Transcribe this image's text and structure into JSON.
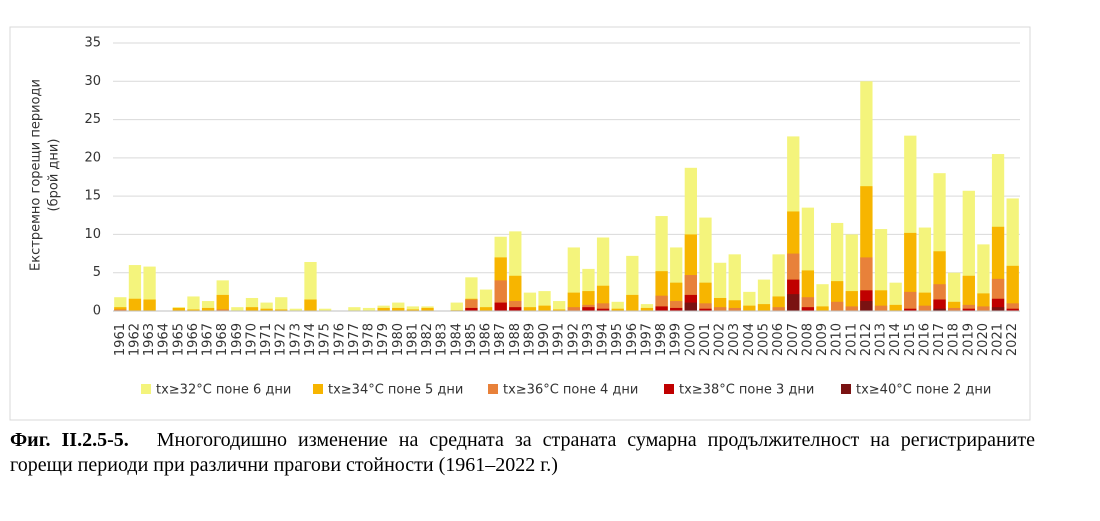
{
  "chart_data": {
    "type": "bar",
    "ylabel": [
      "Екстремно горещи периоди",
      "(брой дни)"
    ],
    "categories": [
      "1961",
      "1962",
      "1963",
      "1964",
      "1965",
      "1966",
      "1967",
      "1968",
      "1969",
      "1970",
      "1971",
      "1972",
      "1973",
      "1974",
      "1975",
      "1976",
      "1977",
      "1978",
      "1979",
      "1980",
      "1981",
      "1982",
      "1983",
      "1984",
      "1985",
      "1986",
      "1987",
      "1988",
      "1989",
      "1990",
      "1991",
      "1992",
      "1993",
      "1994",
      "1995",
      "1996",
      "1997",
      "1998",
      "1999",
      "2000",
      "2001",
      "2002",
      "2003",
      "2004",
      "2005",
      "2006",
      "2007",
      "2008",
      "2009",
      "2010",
      "2011",
      "2012",
      "2013",
      "2014",
      "2015",
      "2016",
      "2017",
      "2018",
      "2019",
      "2020",
      "2021",
      "2022"
    ],
    "series": [
      {
        "name": "tx≥32°C поне 6 дни",
        "color": "#f4f47c",
        "values": [
          1.8,
          6,
          5.8,
          0,
          0.5,
          1.9,
          1.3,
          4,
          0.5,
          1.7,
          1.1,
          1.8,
          0.3,
          6.4,
          0.3,
          0,
          0.5,
          0.4,
          0.7,
          1.1,
          0.6,
          0.6,
          0,
          1.1,
          4.4,
          2.8,
          9.7,
          10.4,
          2.4,
          2.6,
          1.3,
          8.3,
          5.5,
          9.6,
          1.2,
          7.2,
          0.9,
          12.4,
          8.3,
          18.7,
          12.2,
          6.3,
          7.4,
          2.5,
          4.1,
          7.4,
          22.8,
          13.5,
          3.5,
          11.5,
          10,
          30,
          10.7,
          3.7,
          22.9,
          10.9,
          18,
          5,
          15.7,
          8.7,
          20.5,
          14.7
        ]
      },
      {
        "name": "tx≥34°C поне 5 дни",
        "color": "#f7b500",
        "values": [
          0.5,
          1.6,
          1.5,
          0,
          0.4,
          0.2,
          0.4,
          2.1,
          0,
          0.5,
          0.3,
          0.2,
          0,
          1.5,
          0,
          0,
          0,
          0,
          0.4,
          0.4,
          0.2,
          0.4,
          0,
          0.1,
          1.6,
          0.5,
          7,
          4.6,
          0.5,
          0.7,
          0.2,
          2.4,
          2.6,
          3.3,
          0.3,
          2.1,
          0.4,
          5.2,
          3.7,
          10,
          3.7,
          1.7,
          1.4,
          0.7,
          0.9,
          1.9,
          13,
          5.3,
          0.6,
          3.9,
          2.6,
          16.3,
          2.7,
          0.8,
          10.2,
          2.4,
          7.8,
          1.2,
          4.6,
          2.3,
          11,
          5.9
        ]
      },
      {
        "name": "tx≥36°C поне 4 дни",
        "color": "#e8813a",
        "values": [
          0.2,
          0,
          0,
          0,
          0,
          0,
          0,
          0.2,
          0,
          0,
          0,
          0,
          0,
          0,
          0,
          0,
          0,
          0,
          0,
          0,
          0,
          0,
          0,
          0,
          1.5,
          0,
          4,
          1.3,
          0,
          0,
          0,
          0.5,
          0.8,
          1,
          0,
          0,
          0,
          2,
          1.3,
          4.7,
          1,
          0.5,
          0.4,
          0,
          0,
          0.5,
          7.5,
          1.8,
          0,
          1.2,
          0.6,
          7,
          0.7,
          0,
          2.5,
          0.7,
          3.5,
          0.4,
          0.8,
          0.6,
          4.2,
          1
        ]
      },
      {
        "name": "tx≥38°C поне 3 дни",
        "color": "#c00000",
        "values": [
          0,
          0,
          0,
          0,
          0,
          0,
          0,
          0,
          0,
          0,
          0,
          0,
          0,
          0,
          0,
          0,
          0,
          0,
          0,
          0,
          0,
          0,
          0,
          0,
          0.4,
          0,
          1.1,
          0.5,
          0,
          0,
          0,
          0,
          0.5,
          0.3,
          0,
          0,
          0,
          0.6,
          0.4,
          2.1,
          0.3,
          0,
          0,
          0,
          0,
          0,
          4.1,
          0.5,
          0,
          0,
          0,
          2.7,
          0,
          0,
          0.3,
          0,
          1.5,
          0,
          0.3,
          0,
          1.6,
          0.3
        ]
      },
      {
        "name": "tx≥40°C поне 2 дни",
        "color": "#7a1212",
        "values": [
          0,
          0,
          0,
          0,
          0,
          0,
          0,
          0,
          0,
          0,
          0,
          0,
          0,
          0,
          0,
          0,
          0,
          0,
          0,
          0,
          0,
          0,
          0,
          0,
          0,
          0,
          0,
          0,
          0,
          0,
          0,
          0,
          0,
          0,
          0,
          0,
          0,
          0,
          0,
          1.1,
          0,
          0,
          0,
          0,
          0,
          0,
          2.2,
          0,
          0,
          0,
          0,
          1.3,
          0,
          0,
          0,
          0,
          0.3,
          0,
          0,
          0,
          0.5,
          0
        ]
      }
    ],
    "ylim": [
      0,
      35
    ],
    "yticks": [
      0,
      5,
      10,
      15,
      20,
      25,
      30,
      35
    ],
    "grid": true,
    "legend": "bottom"
  },
  "caption": {
    "label": "Фиг. II.2.5-5.",
    "text": "Многогодишно изменение на средната за страната сумарна продължителност на регистрираните горещи периоди при различни прагови стойности (1961–2022 г.)"
  }
}
